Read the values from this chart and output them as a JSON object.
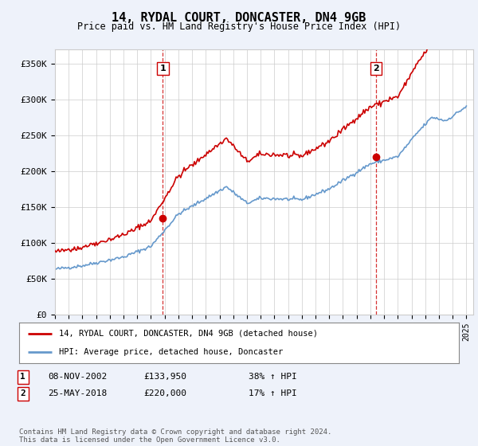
{
  "title": "14, RYDAL COURT, DONCASTER, DN4 9GB",
  "subtitle": "Price paid vs. HM Land Registry's House Price Index (HPI)",
  "ylabel_ticks": [
    "£0",
    "£50K",
    "£100K",
    "£150K",
    "£200K",
    "£250K",
    "£300K",
    "£350K"
  ],
  "ytick_values": [
    0,
    50000,
    100000,
    150000,
    200000,
    250000,
    300000,
    350000
  ],
  "ylim": [
    0,
    370000
  ],
  "xlim_start": 1995.0,
  "xlim_end": 2025.5,
  "transaction1": {
    "date_num": 2002.86,
    "price": 133950,
    "label": "1"
  },
  "transaction2": {
    "date_num": 2018.4,
    "price": 220000,
    "label": "2"
  },
  "legend_line1": "14, RYDAL COURT, DONCASTER, DN4 9GB (detached house)",
  "legend_line2": "HPI: Average price, detached house, Doncaster",
  "table_rows": [
    {
      "num": "1",
      "date": "08-NOV-2002",
      "price": "£133,950",
      "change": "38% ↑ HPI"
    },
    {
      "num": "2",
      "date": "25-MAY-2018",
      "price": "£220,000",
      "change": "17% ↑ HPI"
    }
  ],
  "footer": "Contains HM Land Registry data © Crown copyright and database right 2024.\nThis data is licensed under the Open Government Licence v3.0.",
  "line1_color": "#cc0000",
  "line2_color": "#6699cc",
  "vline_color": "#cc0000",
  "background_color": "#eef2fa",
  "plot_bg_color": "#ffffff",
  "grid_color": "#cccccc"
}
